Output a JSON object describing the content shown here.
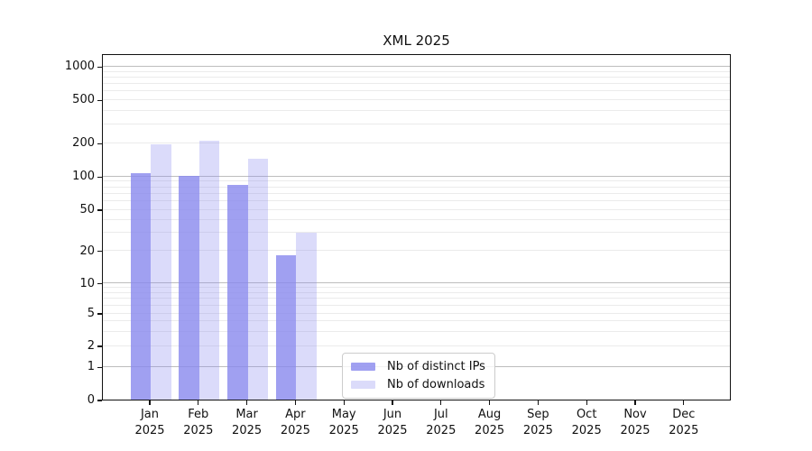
{
  "chart_data": {
    "type": "bar",
    "title": "XML 2025",
    "categories": [
      {
        "month": "Jan",
        "year": "2025"
      },
      {
        "month": "Feb",
        "year": "2025"
      },
      {
        "month": "Mar",
        "year": "2025"
      },
      {
        "month": "Apr",
        "year": "2025"
      },
      {
        "month": "May",
        "year": "2025"
      },
      {
        "month": "Jun",
        "year": "2025"
      },
      {
        "month": "Jul",
        "year": "2025"
      },
      {
        "month": "Aug",
        "year": "2025"
      },
      {
        "month": "Sep",
        "year": "2025"
      },
      {
        "month": "Oct",
        "year": "2025"
      },
      {
        "month": "Nov",
        "year": "2025"
      },
      {
        "month": "Dec",
        "year": "2025"
      }
    ],
    "series": [
      {
        "name": "Nb of distinct IPs",
        "color": "#8888ee",
        "alpha": 0.8,
        "values": [
          107,
          100,
          83,
          18,
          0,
          0,
          0,
          0,
          0,
          0,
          0,
          0
        ]
      },
      {
        "name": "Nb of downloads",
        "color": "#8888ee",
        "alpha": 0.3,
        "values": [
          194,
          207,
          145,
          30,
          0,
          0,
          0,
          0,
          0,
          0,
          0,
          0
        ]
      }
    ],
    "y_ticks": [
      0,
      1,
      2,
      5,
      10,
      20,
      50,
      100,
      200,
      500,
      1000
    ],
    "y_tick_labels": [
      "0",
      "1",
      "2",
      "5",
      "10",
      "20",
      "50",
      "100",
      "200",
      "500",
      "1000"
    ],
    "y_scale": "symlog-like (log above 1, linear 0-1)",
    "ylim": [
      0,
      1500
    ],
    "grid": "horizontal major + log minor gridlines",
    "legend_position": "inside bottom-center-left"
  },
  "colors": {
    "bar_base": "#8888ee",
    "grid_major": "#bdbdbd",
    "grid_minor": "#ebebeb",
    "axis_frame": "#111111",
    "background": "#ffffff"
  }
}
